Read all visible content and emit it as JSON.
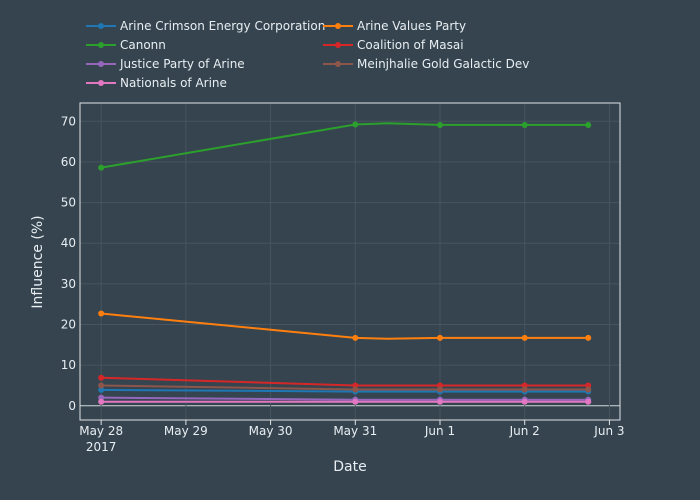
{
  "colors": {
    "background": "#35444f",
    "plot_border": "#dfe3e6",
    "grid": "#46555f",
    "zeroline": "#cfd8dc",
    "text": "#e8eef2"
  },
  "chart_data": {
    "type": "line",
    "xlabel": "Date",
    "ylabel": "Influence (%)",
    "x_range": [
      "2017-05-27 18:00",
      "2017-06-03 03:00"
    ],
    "y_range": [
      -3.5,
      74.5
    ],
    "x_ticks": [
      {
        "date": "2017-05-28",
        "label": "May 28",
        "sublabel": "2017"
      },
      {
        "date": "2017-05-29",
        "label": "May 29",
        "sublabel": ""
      },
      {
        "date": "2017-05-30",
        "label": "May 30",
        "sublabel": ""
      },
      {
        "date": "2017-05-31",
        "label": "May 31",
        "sublabel": ""
      },
      {
        "date": "2017-06-01",
        "label": "Jun 1",
        "sublabel": ""
      },
      {
        "date": "2017-06-02",
        "label": "Jun 2",
        "sublabel": ""
      },
      {
        "date": "2017-06-03",
        "label": "Jun 3",
        "sublabel": ""
      }
    ],
    "y_ticks": [
      0,
      10,
      20,
      30,
      40,
      50,
      60,
      70
    ],
    "grid": true,
    "legend_position": "top",
    "series": [
      {
        "name": "Arine Crimson Energy Corporation",
        "color": "#1f77b4",
        "x": [
          "2017-05-28",
          "2017-05-31",
          "2017-06-01",
          "2017-06-02",
          "2017-06-02 18:00"
        ],
        "y": [
          3.9,
          3.5,
          3.5,
          3.5,
          3.5
        ],
        "marker_indices": [
          0,
          1,
          2,
          3,
          4
        ]
      },
      {
        "name": "Arine Values Party",
        "color": "#ff7f0e",
        "x": [
          "2017-05-28",
          "2017-05-31",
          "2017-05-31 09:00",
          "2017-06-01",
          "2017-06-02",
          "2017-06-02 18:00"
        ],
        "y": [
          22.7,
          16.7,
          16.5,
          16.7,
          16.7,
          16.7
        ],
        "marker_indices": [
          0,
          1,
          3,
          4,
          5
        ]
      },
      {
        "name": "Canonn",
        "color": "#2ca02c",
        "x": [
          "2017-05-28",
          "2017-05-31",
          "2017-05-31 09:00",
          "2017-06-01",
          "2017-06-02",
          "2017-06-02 18:00"
        ],
        "y": [
          58.6,
          69.2,
          69.5,
          69.1,
          69.1,
          69.1
        ],
        "marker_indices": [
          0,
          1,
          3,
          4,
          5
        ]
      },
      {
        "name": "Coalition of Masai",
        "color": "#d62728",
        "x": [
          "2017-05-28",
          "2017-05-31",
          "2017-06-01",
          "2017-06-02",
          "2017-06-02 18:00"
        ],
        "y": [
          6.9,
          5.0,
          5.0,
          5.0,
          5.0
        ],
        "marker_indices": [
          0,
          1,
          2,
          3,
          4
        ]
      },
      {
        "name": "Justice Party of Arine",
        "color": "#9467bd",
        "x": [
          "2017-05-28",
          "2017-05-31",
          "2017-06-01",
          "2017-06-02",
          "2017-06-02 18:00"
        ],
        "y": [
          2.0,
          1.5,
          1.5,
          1.5,
          1.5
        ],
        "marker_indices": [
          0,
          1,
          2,
          3,
          4
        ]
      },
      {
        "name": "Meinjhalie Gold Galactic Dev",
        "color": "#8c564b",
        "x": [
          "2017-05-28",
          "2017-05-31",
          "2017-06-01",
          "2017-06-02",
          "2017-06-02 18:00"
        ],
        "y": [
          5.0,
          4.0,
          4.0,
          4.0,
          4.0
        ],
        "marker_indices": [
          0,
          1,
          2,
          3,
          4
        ]
      },
      {
        "name": "Nationals of Arine",
        "color": "#e377c2",
        "x": [
          "2017-05-28",
          "2017-05-31",
          "2017-06-01",
          "2017-06-02",
          "2017-06-02 18:00"
        ],
        "y": [
          1.0,
          1.0,
          1.0,
          1.0,
          1.0
        ],
        "marker_indices": [
          0,
          1,
          2,
          3,
          4
        ]
      }
    ]
  }
}
